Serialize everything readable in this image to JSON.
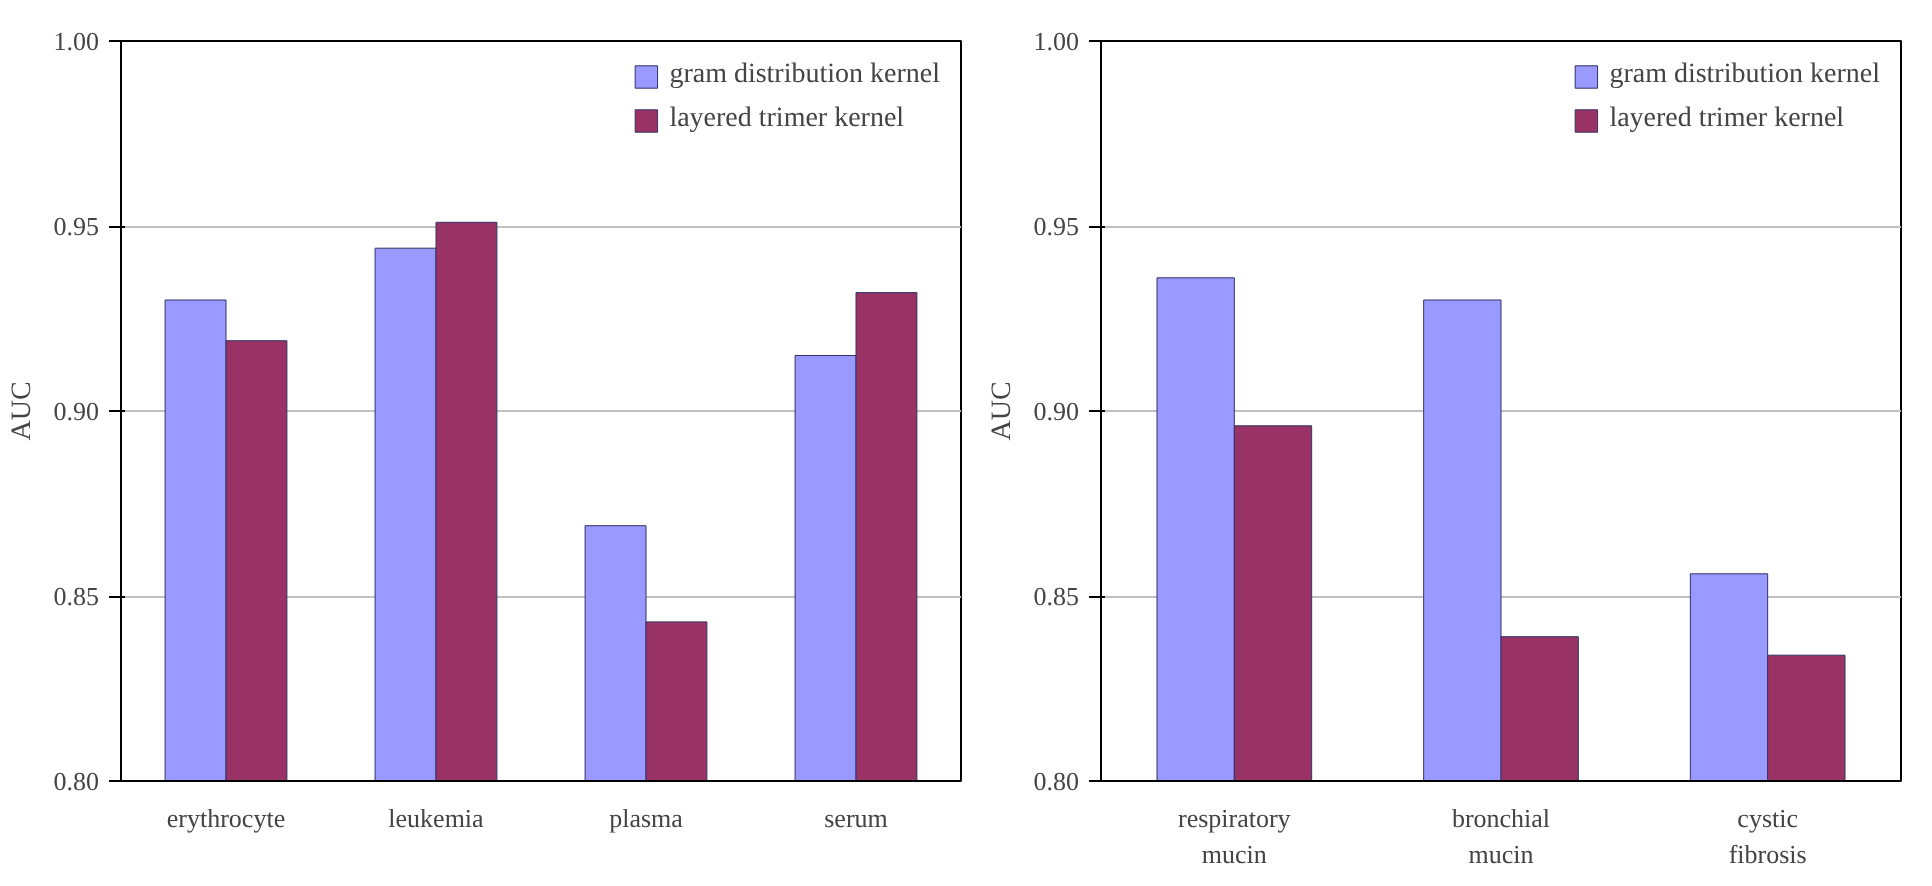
{
  "chart_data": [
    {
      "type": "bar",
      "ylabel": "AUC",
      "categories": [
        "erythrocyte",
        "leukemia",
        "plasma",
        "serum"
      ],
      "series": [
        {
          "name": "gram distribution kernel",
          "color": "#9999ff",
          "values": [
            0.93,
            0.944,
            0.869,
            0.915
          ]
        },
        {
          "name": "layered trimer kernel",
          "color": "#993366",
          "values": [
            0.919,
            0.951,
            0.843,
            0.932
          ]
        }
      ],
      "ylim": [
        0.8,
        1.0
      ],
      "yticks": [
        {
          "value": 0.8,
          "label": "0.80"
        },
        {
          "value": 0.85,
          "label": "0.85"
        },
        {
          "value": 0.9,
          "label": "0.90"
        },
        {
          "value": 0.95,
          "label": "0.95"
        },
        {
          "value": 1.0,
          "label": "1.00"
        }
      ],
      "grid": "y",
      "legend": "top right"
    },
    {
      "type": "bar",
      "ylabel": "AUC",
      "categories": [
        "respiratory\nmucin",
        "bronchial\nmucin",
        "cystic\nfibrosis"
      ],
      "series": [
        {
          "name": "gram distribution kernel",
          "color": "#9999ff",
          "values": [
            0.936,
            0.93,
            0.856
          ]
        },
        {
          "name": "layered trimer kernel",
          "color": "#993366",
          "values": [
            0.896,
            0.839,
            0.834
          ]
        }
      ],
      "ylim": [
        0.8,
        1.0
      ],
      "yticks": [
        {
          "value": 0.8,
          "label": "0.80"
        },
        {
          "value": 0.85,
          "label": "0.85"
        },
        {
          "value": 0.9,
          "label": "0.90"
        },
        {
          "value": 0.95,
          "label": "0.95"
        },
        {
          "value": 1.0,
          "label": "1.00"
        }
      ],
      "grid": "y",
      "legend": "top right"
    }
  ]
}
